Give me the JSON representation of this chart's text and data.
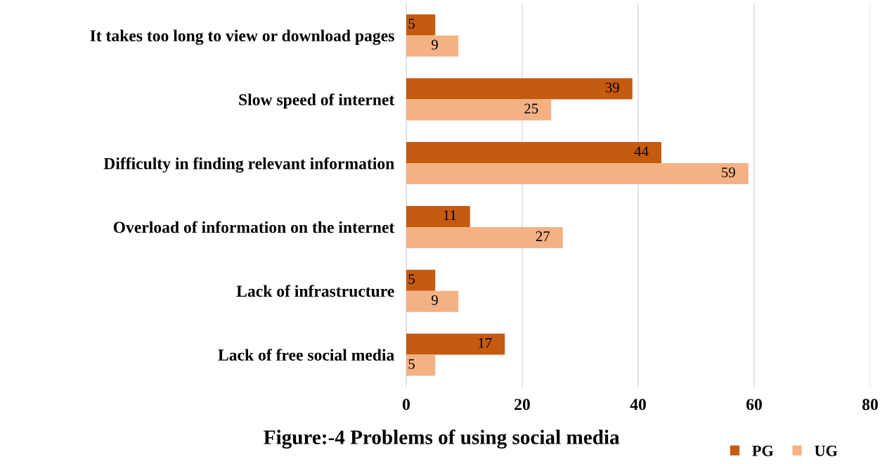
{
  "chart_data": {
    "type": "bar",
    "orientation": "horizontal",
    "title": "Figure:-4 Problems of using social media",
    "categories": [
      "It takes too long to view or download pages",
      "Slow speed of internet",
      "Difficulty in finding relevant information",
      "Overload of information on the internet",
      "Lack of infrastructure",
      "Lack of free social media"
    ],
    "series": [
      {
        "name": "PG",
        "color": "#c55a11",
        "values": [
          5,
          39,
          44,
          11,
          5,
          17
        ]
      },
      {
        "name": "UG",
        "color": "#f4b183",
        "values": [
          9,
          25,
          59,
          27,
          9,
          5
        ]
      }
    ],
    "xlim": [
      0,
      80
    ],
    "xticks": [
      0,
      20,
      40,
      60,
      80
    ],
    "grid": "x",
    "legend": "bottom right",
    "data_labels": true
  }
}
